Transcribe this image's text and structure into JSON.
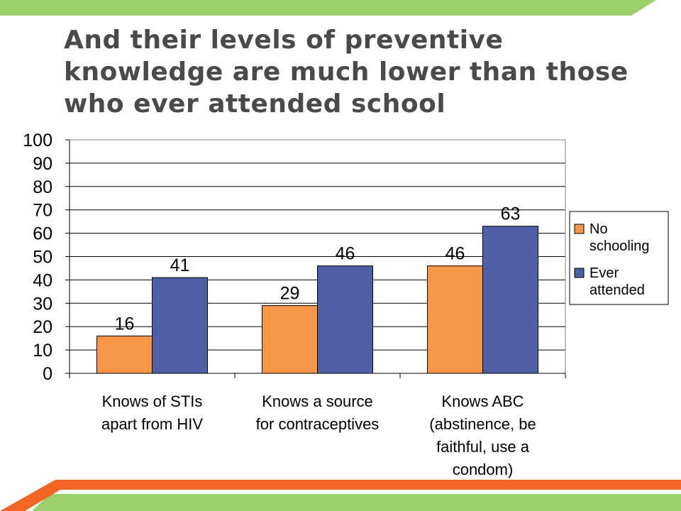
{
  "slide": {
    "title": "And their levels of preventive knowledge are much lower than those who ever attended school"
  },
  "colors": {
    "no_schooling": "#F79646",
    "ever_attended": "#4F5FA8",
    "top_band": "#9BD06B",
    "bottom_band": "#9BD06B",
    "bottom_stripe": "#F26522",
    "title": "#4a4a4a"
  },
  "chart_data": {
    "type": "bar",
    "categories": [
      [
        "Knows of STIs",
        "apart from HIV"
      ],
      [
        "Knows a source",
        "for contraceptives"
      ],
      [
        "Knows ABC",
        "(abstinence, be",
        "faithful, use a",
        "condom)"
      ]
    ],
    "series": [
      {
        "name": "No schooling",
        "legend_lines": [
          "No",
          "schooling"
        ],
        "values": [
          16,
          29,
          46
        ]
      },
      {
        "name": "Ever attended",
        "legend_lines": [
          "Ever",
          "attended"
        ],
        "values": [
          41,
          46,
          63
        ]
      }
    ],
    "ylim": [
      0,
      100
    ],
    "yticks": [
      0,
      10,
      20,
      30,
      40,
      50,
      60,
      70,
      80,
      90,
      100
    ],
    "grid": true,
    "legend": "right",
    "data_labels": true
  }
}
